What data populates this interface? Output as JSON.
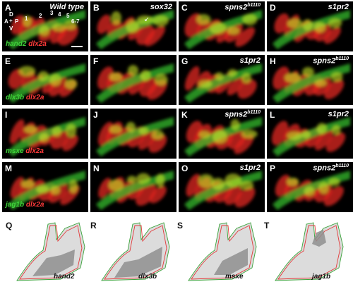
{
  "figure": {
    "rows": [
      [
        {
          "id": "A",
          "label": "A",
          "gene": "Wild type",
          "caption_green": "hand2",
          "caption_red": "dlx2a"
        },
        {
          "id": "B",
          "label": "B",
          "gene": "sox32"
        },
        {
          "id": "C",
          "label": "C",
          "gene": "spns2",
          "gene_sup": "b1110"
        },
        {
          "id": "D",
          "label": "D",
          "gene": "s1pr2"
        }
      ],
      [
        {
          "id": "E",
          "label": "E",
          "caption_green": "dlx3b",
          "caption_red": "dlx2a"
        },
        {
          "id": "F",
          "label": "F"
        },
        {
          "id": "G",
          "label": "G",
          "gene": "s1pr2"
        },
        {
          "id": "H",
          "label": "H",
          "gene": "spns2",
          "gene_sup": "b1110"
        }
      ],
      [
        {
          "id": "I",
          "label": "I",
          "caption_green": "msxe",
          "caption_red": "dlx2a"
        },
        {
          "id": "J",
          "label": "J"
        },
        {
          "id": "K",
          "label": "K",
          "gene": "spns2",
          "gene_sup": "b1110"
        },
        {
          "id": "L",
          "label": "L",
          "gene": "s1pr2"
        }
      ],
      [
        {
          "id": "M",
          "label": "M",
          "caption_green": "jag1b",
          "caption_red": "dlx2a"
        },
        {
          "id": "N",
          "label": "N"
        },
        {
          "id": "O",
          "label": "O",
          "gene": "s1pr2"
        },
        {
          "id": "P",
          "label": "P",
          "gene": "spns2",
          "gene_sup": "b1110"
        }
      ]
    ],
    "arch_numbers": [
      "1",
      "2",
      "3",
      "4",
      "5",
      "6-7"
    ],
    "axes": {
      "d": "D",
      "v": "V",
      "a": "A",
      "p": "P"
    },
    "outlines": [
      {
        "label": "Q",
        "gene": "hand2"
      },
      {
        "label": "R",
        "gene": "dlx3b"
      },
      {
        "label": "S",
        "gene": "msxe"
      },
      {
        "label": "T",
        "gene": "jag1b"
      }
    ],
    "colors": {
      "green": "#3fd23a",
      "red": "#ff3a3a",
      "background": "#000000"
    }
  }
}
